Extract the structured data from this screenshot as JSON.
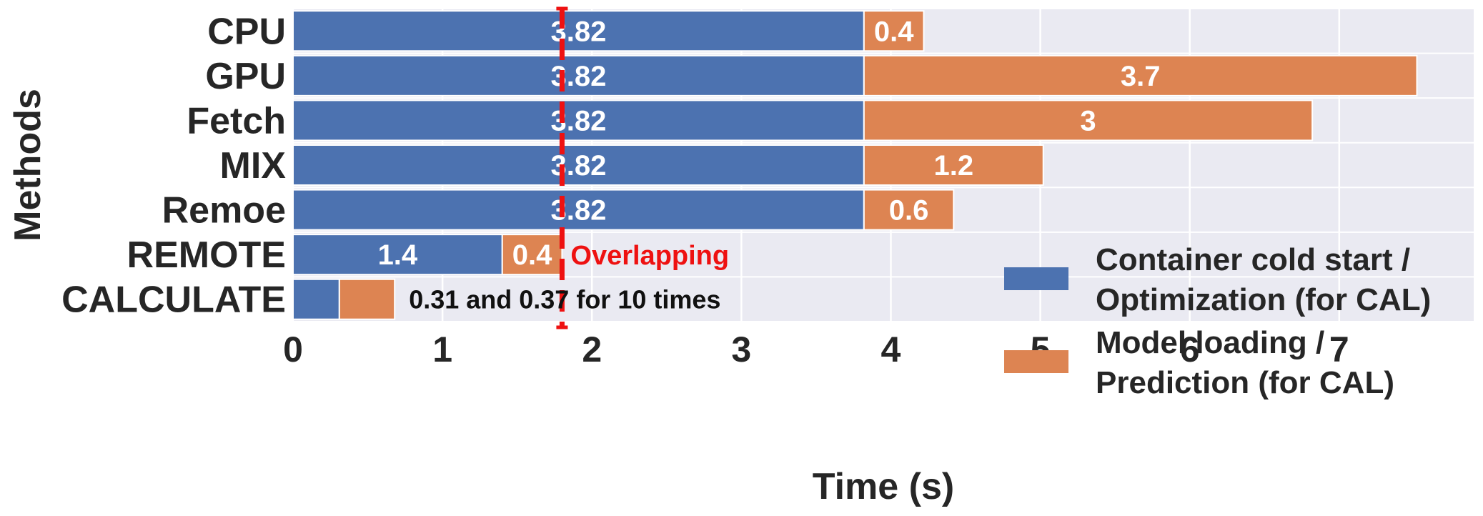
{
  "chart_data": {
    "type": "bar",
    "orientation": "horizontal",
    "stacked": true,
    "title": "",
    "xlabel": "Time (s)",
    "ylabel": "Methods",
    "xlim": [
      0,
      7.9
    ],
    "xticks": [
      "0",
      "1",
      "2",
      "3",
      "4",
      "5",
      "6",
      "7"
    ],
    "categories": [
      "CPU",
      "GPU",
      "Fetch",
      "MIX",
      "Remoe",
      "REMOTE",
      "CALCULATE"
    ],
    "series": [
      {
        "name": "Container cold start / Optimization (for CAL)",
        "color": "#4c72b0",
        "values": [
          3.82,
          3.82,
          3.82,
          3.82,
          3.82,
          1.4,
          0.31
        ],
        "labels": [
          "3.82",
          "3.82",
          "3.82",
          "3.82",
          "3.82",
          "1.4",
          ""
        ]
      },
      {
        "name": "Model loading / Prediction (for CAL)",
        "color": "#dd8452",
        "values": [
          0.4,
          3.7,
          3,
          1.2,
          0.6,
          0.4,
          0.37
        ],
        "labels": [
          "0.4",
          "3.7",
          "3",
          "1.2",
          "0.6",
          "0.4",
          ""
        ]
      }
    ],
    "legend": {
      "placement": "right",
      "entries": [
        {
          "line1": "Container cold start /",
          "line2": "Optimization (for CAL)"
        },
        {
          "line1": "Model loading /",
          "line2": "Prediction (for CAL)"
        }
      ]
    },
    "vline": {
      "x": 1.8,
      "color": "#ee1111",
      "label": "Overlapping"
    },
    "annotation": {
      "text": "0.31 and 0.37 for 10 times",
      "category": "CALCULATE"
    },
    "grid": true,
    "background": "#eaeaf2"
  }
}
